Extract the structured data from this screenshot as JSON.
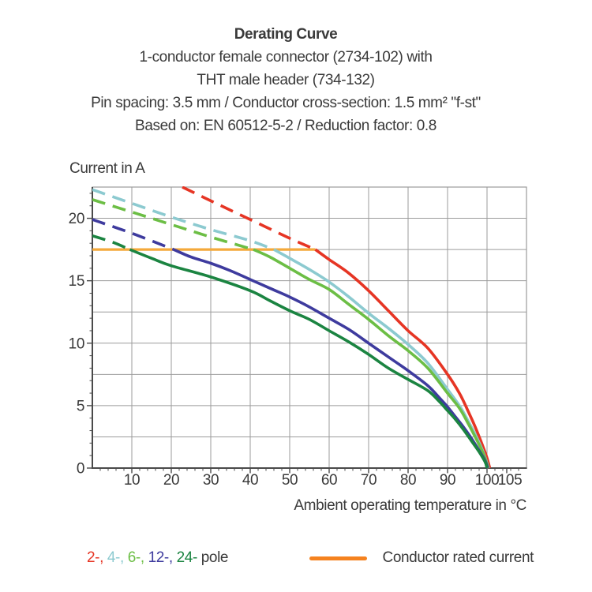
{
  "header": {
    "title": "Derating Curve",
    "subtitle_lines": [
      "1-conductor female connector (2734-102) with",
      "THT male header (734-132)",
      "Pin spacing: 3.5 mm / Conductor cross-section: 1.5 mm² \"f-st\"",
      "Based on: EN 60512-5-2 / Reduction factor: 0.8"
    ]
  },
  "chart_data": {
    "type": "line",
    "title": "Derating Curve",
    "ylabel": "Current in A",
    "xlabel": "Ambient operating temperature in °C",
    "xlim": [
      0,
      110
    ],
    "ylim": [
      0,
      22.5
    ],
    "x_major_ticks": [
      10,
      20,
      30,
      40,
      50,
      60,
      70,
      80,
      90,
      100,
      105
    ],
    "x_gridlines": [
      10,
      20,
      30,
      40,
      50,
      60,
      70,
      80,
      90,
      100
    ],
    "x_minor_step": 2,
    "y_major_ticks": [
      0,
      5,
      10,
      15,
      20
    ],
    "y_gridline_step": 2.5,
    "y_minor_step": 1,
    "grid": true,
    "legend_position": "bottom",
    "rated_current": {
      "label": "Conductor rated current",
      "value_amps": 17.5,
      "x_start": 0,
      "x_end": 56.5,
      "color": "#F4A93B"
    },
    "series": [
      {
        "name": "2-pole",
        "color": "#E63524",
        "dashed_points": [
          [
            22.8,
            22.5
          ],
          [
            30,
            21.4
          ],
          [
            40,
            19.9
          ],
          [
            50,
            18.4
          ],
          [
            56.5,
            17.5
          ]
        ],
        "solid_points": [
          [
            56.5,
            17.5
          ],
          [
            60,
            16.7
          ],
          [
            65,
            15.6
          ],
          [
            70,
            14.2
          ],
          [
            75,
            12.6
          ],
          [
            80,
            11.0
          ],
          [
            85,
            9.6
          ],
          [
            90,
            7.5
          ],
          [
            93,
            6.0
          ],
          [
            95,
            4.7
          ],
          [
            97,
            3.3
          ],
          [
            99,
            1.7
          ],
          [
            100,
            0.8
          ],
          [
            100.7,
            0
          ]
        ]
      },
      {
        "name": "4-pole",
        "color": "#8CCAD0",
        "dashed_points": [
          [
            0,
            22.3
          ],
          [
            10,
            21.2
          ],
          [
            20,
            20.1
          ],
          [
            30,
            19.1
          ],
          [
            40,
            18.2
          ],
          [
            46,
            17.5
          ]
        ],
        "solid_points": [
          [
            46,
            17.5
          ],
          [
            50,
            16.8
          ],
          [
            55,
            15.9
          ],
          [
            60,
            14.9
          ],
          [
            65,
            13.7
          ],
          [
            70,
            12.4
          ],
          [
            75,
            11.2
          ],
          [
            80,
            9.9
          ],
          [
            85,
            8.4
          ],
          [
            90,
            6.3
          ],
          [
            93,
            5.0
          ],
          [
            95,
            3.9
          ],
          [
            97,
            2.7
          ],
          [
            99,
            1.3
          ],
          [
            100.4,
            0
          ]
        ]
      },
      {
        "name": "6-pole",
        "color": "#6CBE45",
        "dashed_points": [
          [
            0,
            21.5
          ],
          [
            10,
            20.5
          ],
          [
            20,
            19.5
          ],
          [
            30,
            18.5
          ],
          [
            40.8,
            17.5
          ]
        ],
        "solid_points": [
          [
            40.8,
            17.5
          ],
          [
            45,
            16.9
          ],
          [
            50,
            16.0
          ],
          [
            55,
            15.1
          ],
          [
            60,
            14.3
          ],
          [
            65,
            13.1
          ],
          [
            70,
            11.9
          ],
          [
            75,
            10.6
          ],
          [
            80,
            9.4
          ],
          [
            85,
            8.0
          ],
          [
            90,
            6.0
          ],
          [
            93,
            4.8
          ],
          [
            95,
            3.7
          ],
          [
            97,
            2.5
          ],
          [
            99,
            1.2
          ],
          [
            100.3,
            0
          ]
        ]
      },
      {
        "name": "12-pole",
        "color": "#3E3B9E",
        "dashed_points": [
          [
            0,
            19.9
          ],
          [
            10,
            18.8
          ],
          [
            20.6,
            17.5
          ]
        ],
        "solid_points": [
          [
            20.6,
            17.5
          ],
          [
            25,
            16.9
          ],
          [
            30,
            16.4
          ],
          [
            35,
            15.8
          ],
          [
            40,
            15.1
          ],
          [
            45,
            14.4
          ],
          [
            50,
            13.7
          ],
          [
            55,
            12.9
          ],
          [
            60,
            12.0
          ],
          [
            65,
            11.1
          ],
          [
            70,
            10.0
          ],
          [
            75,
            8.9
          ],
          [
            80,
            7.8
          ],
          [
            85,
            6.6
          ],
          [
            88,
            5.6
          ],
          [
            90,
            4.9
          ],
          [
            92,
            4.1
          ],
          [
            94,
            3.3
          ],
          [
            96,
            2.4
          ],
          [
            98,
            1.4
          ],
          [
            99.5,
            0.6
          ],
          [
            100.2,
            0
          ]
        ]
      },
      {
        "name": "24-pole",
        "color": "#1B8441",
        "dashed_points": [
          [
            0,
            18.6
          ],
          [
            5,
            18.1
          ],
          [
            9.5,
            17.5
          ]
        ],
        "solid_points": [
          [
            9.5,
            17.5
          ],
          [
            15,
            16.8
          ],
          [
            20,
            16.2
          ],
          [
            30,
            15.3
          ],
          [
            40,
            14.2
          ],
          [
            45,
            13.4
          ],
          [
            50,
            12.6
          ],
          [
            55,
            11.9
          ],
          [
            60,
            11.0
          ],
          [
            65,
            10.1
          ],
          [
            70,
            9.1
          ],
          [
            75,
            8.0
          ],
          [
            80,
            7.1
          ],
          [
            85,
            6.2
          ],
          [
            88,
            5.3
          ],
          [
            90,
            4.6
          ],
          [
            92,
            3.9
          ],
          [
            94,
            3.1
          ],
          [
            96,
            2.2
          ],
          [
            98,
            1.3
          ],
          [
            99.5,
            0.5
          ],
          [
            100,
            0
          ]
        ]
      }
    ]
  },
  "legend": {
    "pole_items": [
      {
        "label": "2-",
        "color": "#E63524"
      },
      {
        "label": "4-",
        "color": "#8CCAD0"
      },
      {
        "label": "6-",
        "color": "#6CBE45"
      },
      {
        "label": "12-",
        "color": "#3E3B9E"
      },
      {
        "label": "24-",
        "color": "#1B8441"
      }
    ],
    "separator": ", ",
    "suffix": " pole",
    "rated_label": "Conductor rated current",
    "rated_color": "#F5821F"
  },
  "colors": {
    "text": "#3A3A3A",
    "grid": "#9B9B9B",
    "axis": "#4A4A4A",
    "background": "#FFFFFF"
  }
}
